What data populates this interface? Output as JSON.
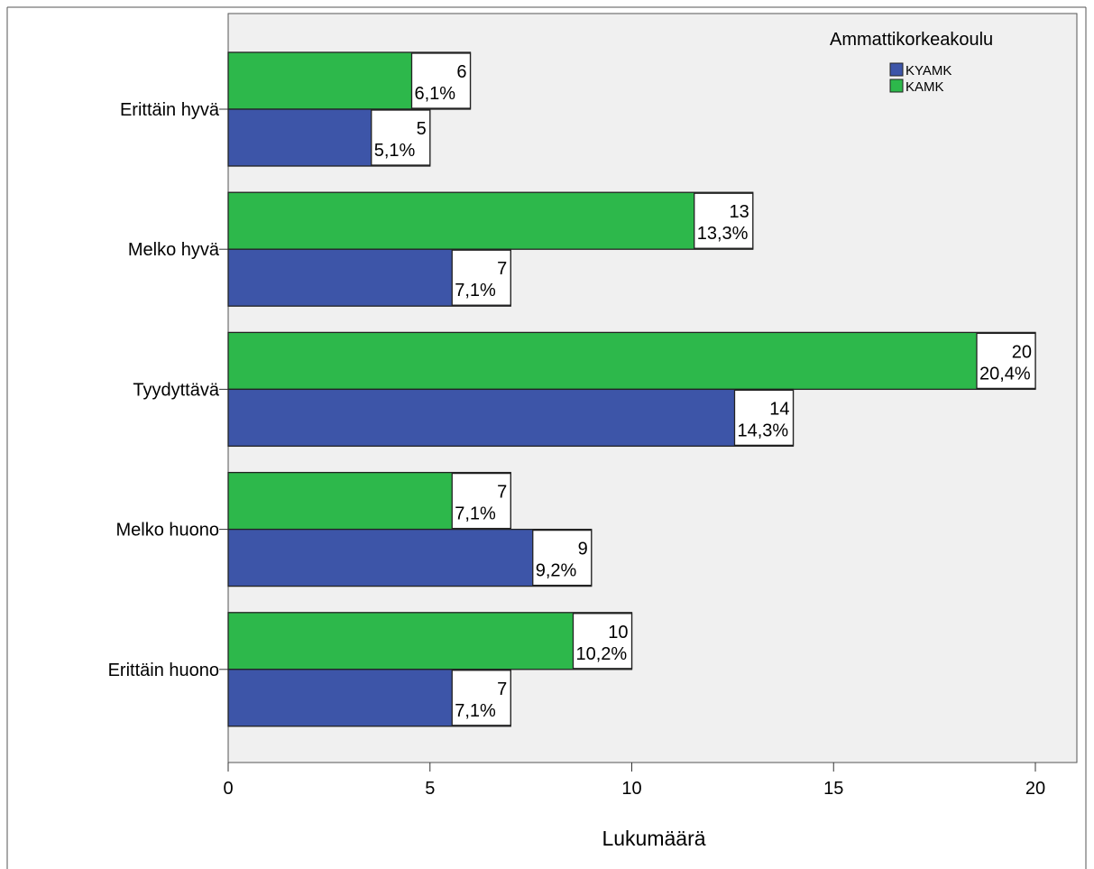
{
  "chart_data": {
    "type": "bar",
    "orientation": "horizontal",
    "categories": [
      "Erittäin hyvä",
      "Melko hyvä",
      "Tyydyttävä",
      "Melko huono",
      "Erittäin huono"
    ],
    "series": [
      {
        "name": "KAMK",
        "values": [
          6,
          13,
          20,
          7,
          10
        ],
        "percent_labels": [
          "6,1%",
          "13,3%",
          "20,4%",
          "7,1%",
          "10,2%"
        ]
      },
      {
        "name": "KYAMK",
        "values": [
          5,
          7,
          14,
          9,
          7
        ],
        "percent_labels": [
          "5,1%",
          "7,1%",
          "14,3%",
          "9,2%",
          "7,1%"
        ]
      }
    ],
    "xlabel": "Lukumäärä",
    "ylabel": "",
    "xlim": [
      0,
      21
    ],
    "xticks": [
      0,
      5,
      10,
      15,
      20
    ],
    "grid": false,
    "legend": {
      "title": "Ammattikorkeakoulu",
      "placement": "top-right",
      "entries": [
        "KYAMK",
        "KAMK"
      ]
    },
    "colors": {
      "KYAMK": "#3d55a8",
      "KAMK": "#2db84b",
      "plot_background": "#f0f0f0"
    }
  }
}
